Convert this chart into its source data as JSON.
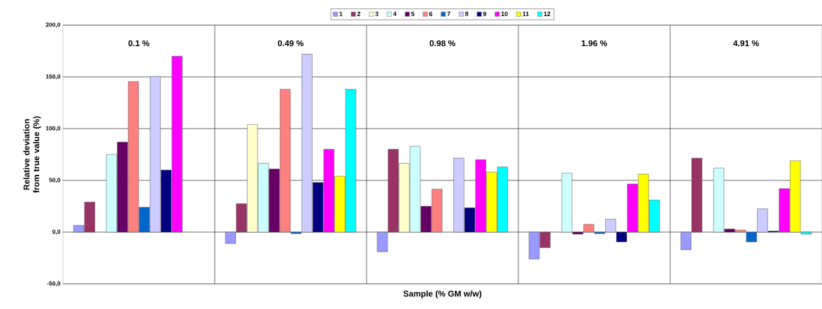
{
  "chart_data": {
    "type": "bar",
    "categories": [
      "0.1 %",
      "0.49 %",
      "0.98 %",
      "1.96 %",
      "4.91 %"
    ],
    "xlabel": "Sample (% GM w/w)",
    "ylabel": "Relative deviation from true value (%)",
    "ylim": [
      -50,
      200
    ],
    "yticks": [
      {
        "value": -50,
        "label": "-50,0"
      },
      {
        "value": 0,
        "label": "0,0"
      },
      {
        "value": 50,
        "label": "50,0"
      },
      {
        "value": 100,
        "label": "100,0"
      },
      {
        "value": 150,
        "label": "150,0"
      },
      {
        "value": 200,
        "label": "200,0"
      }
    ],
    "grid": true,
    "legend": "top",
    "series": [
      {
        "name": "1",
        "color": "#9999ff",
        "values": [
          6.5,
          -11,
          -19,
          -26,
          -17
        ]
      },
      {
        "name": "2",
        "color": "#993366",
        "values": [
          29,
          27.5,
          80,
          -15,
          71.5
        ]
      },
      {
        "name": "3",
        "color": "#ffffcc",
        "values": [
          null,
          104,
          66.5,
          null,
          null
        ]
      },
      {
        "name": "4",
        "color": "#ccffff",
        "values": [
          75,
          66.5,
          83,
          57,
          62
        ]
      },
      {
        "name": "5",
        "color": "#660066",
        "values": [
          87,
          61,
          25,
          -2,
          3
        ]
      },
      {
        "name": "6",
        "color": "#ff8080",
        "values": [
          145.5,
          138,
          41.5,
          7.5,
          2
        ]
      },
      {
        "name": "7",
        "color": "#0066cc",
        "values": [
          24,
          -1.5,
          null,
          -1.5,
          -9.5
        ]
      },
      {
        "name": "8",
        "color": "#ccccff",
        "values": [
          150.5,
          172,
          71.5,
          12.5,
          22.5
        ]
      },
      {
        "name": "9",
        "color": "#000080",
        "values": [
          60,
          48,
          23.5,
          -9.5,
          1
        ]
      },
      {
        "name": "10",
        "color": "#ff00ff",
        "values": [
          170,
          80,
          70,
          46.5,
          42
        ]
      },
      {
        "name": "11",
        "color": "#ffff00",
        "values": [
          null,
          54,
          58,
          56,
          69
        ]
      },
      {
        "name": "12",
        "color": "#00ffff",
        "values": [
          null,
          138,
          63,
          31,
          -2
        ]
      }
    ]
  }
}
